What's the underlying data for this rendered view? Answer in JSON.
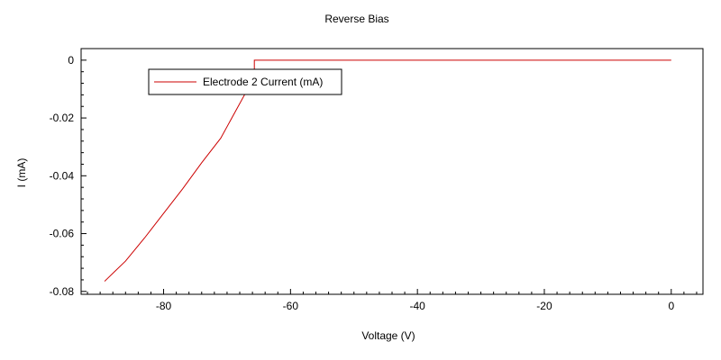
{
  "chart_data": {
    "type": "line",
    "title": "Reverse Bias",
    "xlabel": "Voltage (V)",
    "ylabel": "I (mA)",
    "xlim": [
      -93,
      5
    ],
    "ylim": [
      -0.081,
      0.004
    ],
    "x_ticks": [
      -80,
      -60,
      -40,
      -20,
      0
    ],
    "y_ticks": [
      0,
      -0.02,
      -0.04,
      -0.06,
      -0.08
    ],
    "x_tick_labels": [
      "-80",
      "-60",
      "-40",
      "-20",
      "0"
    ],
    "y_tick_labels": [
      "0",
      "-0.02",
      "-0.04",
      "-0.06",
      "-0.08"
    ],
    "x_minor_step": 2,
    "y_minor_step": 0.004,
    "grid": false,
    "legend_position": "top-left",
    "series": [
      {
        "name": "Electrode 2 Current (mA)",
        "color": "#cc0000",
        "x": [
          -89.3,
          -86,
          -83,
          -80,
          -77,
          -74,
          -71,
          -69,
          -67,
          -66.2,
          -65.7,
          -65.7,
          -60,
          -50,
          -40,
          -30,
          -20,
          -10,
          0
        ],
        "y": [
          -0.0765,
          -0.0695,
          -0.0615,
          -0.053,
          -0.0445,
          -0.0355,
          -0.027,
          -0.019,
          -0.011,
          -0.006,
          -0.003,
          0,
          0,
          0,
          0,
          0,
          0,
          0,
          0
        ]
      }
    ]
  }
}
